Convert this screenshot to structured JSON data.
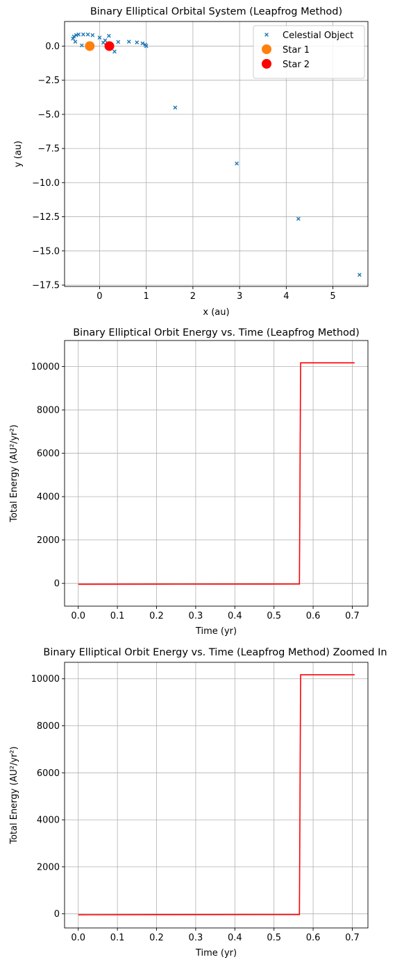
{
  "chart_data": [
    {
      "type": "scatter",
      "title": "Binary Elliptical Orbital System (Leapfrog Method)",
      "xlabel": "x (au)",
      "ylabel": "y (au)",
      "xlim": [
        -0.75,
        5.75
      ],
      "ylim": [
        -17.6,
        1.8
      ],
      "xticks": [
        0,
        1,
        2,
        3,
        4,
        5
      ],
      "xtick_labels": [
        "0",
        "1",
        "2",
        "3",
        "4",
        "5"
      ],
      "yticks": [
        0.0,
        -2.5,
        -5.0,
        -7.5,
        -10.0,
        -12.5,
        -15.0,
        -17.5
      ],
      "ytick_labels": [
        "0.0",
        "−2.5",
        "−5.0",
        "−7.5",
        "−10.0",
        "−12.5",
        "−15.0",
        "−17.5"
      ],
      "grid": true,
      "legend_position": "top-right",
      "series": [
        {
          "name": "Celestial Object",
          "marker": "x",
          "color": "#1f77b4",
          "points": [
            [
              1.0,
              0.0
            ],
            [
              0.98,
              0.1
            ],
            [
              0.92,
              0.2
            ],
            [
              0.8,
              0.27
            ],
            [
              0.63,
              0.32
            ],
            [
              0.4,
              0.3
            ],
            [
              0.2,
              0.75
            ],
            [
              0.0,
              0.62
            ],
            [
              -0.15,
              0.8
            ],
            [
              -0.25,
              0.85
            ],
            [
              -0.35,
              0.85
            ],
            [
              -0.45,
              0.85
            ],
            [
              -0.5,
              0.8
            ],
            [
              -0.55,
              0.7
            ],
            [
              -0.57,
              0.55
            ],
            [
              -0.52,
              0.32
            ],
            [
              -0.38,
              0.05
            ],
            [
              0.08,
              0.25
            ],
            [
              0.12,
              0.42
            ],
            [
              0.32,
              -0.4
            ],
            [
              1.62,
              -4.5
            ],
            [
              2.94,
              -8.6
            ],
            [
              4.26,
              -12.65
            ],
            [
              5.57,
              -16.75
            ]
          ]
        },
        {
          "name": "Star 1",
          "marker": "o",
          "color": "#ff7f0e",
          "points": [
            [
              -0.21,
              0.0
            ]
          ]
        },
        {
          "name": "Star 2",
          "marker": "o",
          "color": "#ff0000",
          "points": [
            [
              0.21,
              0.0
            ]
          ]
        }
      ]
    },
    {
      "type": "line",
      "title": "Binary Elliptical Orbit Energy vs. Time (Leapfrog Method)",
      "xlabel": "Time (yr)",
      "ylabel": "Total Energy (AU²/yr²)",
      "xlim": [
        -0.035,
        0.74
      ],
      "ylim": [
        -1050,
        11200
      ],
      "xticks": [
        0.0,
        0.1,
        0.2,
        0.3,
        0.4,
        0.5,
        0.6,
        0.7
      ],
      "xtick_labels": [
        "0.0",
        "0.1",
        "0.2",
        "0.3",
        "0.4",
        "0.5",
        "0.6",
        "0.7"
      ],
      "yticks": [
        0,
        2000,
        4000,
        6000,
        8000,
        10000
      ],
      "ytick_labels": [
        "0",
        "2000",
        "4000",
        "6000",
        "8000",
        "10000"
      ],
      "grid": true,
      "series": [
        {
          "name": "Total Energy",
          "color": "#ff0000",
          "x": [
            0.0,
            0.2,
            0.565,
            0.568,
            0.706
          ],
          "y": [
            -40,
            -35,
            -30,
            10170,
            10170
          ]
        }
      ]
    },
    {
      "type": "line",
      "title": "Binary Elliptical Orbit Energy vs. Time (Leapfrog Method) Zoomed In",
      "xlabel": "Time (yr)",
      "ylabel": "Total Energy (AU²/yr²)",
      "xlim": [
        -0.035,
        0.74
      ],
      "ylim": [
        -600,
        10700
      ],
      "xticks": [
        0.0,
        0.1,
        0.2,
        0.3,
        0.4,
        0.5,
        0.6,
        0.7
      ],
      "xtick_labels": [
        "0.0",
        "0.1",
        "0.2",
        "0.3",
        "0.4",
        "0.5",
        "0.6",
        "0.7"
      ],
      "yticks": [
        0,
        2000,
        4000,
        6000,
        8000,
        10000
      ],
      "ytick_labels": [
        "0",
        "2000",
        "4000",
        "6000",
        "8000",
        "10000"
      ],
      "grid": true,
      "series": [
        {
          "name": "Total Energy",
          "color": "#ff0000",
          "x": [
            0.0,
            0.2,
            0.565,
            0.568,
            0.706
          ],
          "y": [
            -40,
            -35,
            -30,
            10170,
            10170
          ]
        }
      ]
    }
  ]
}
